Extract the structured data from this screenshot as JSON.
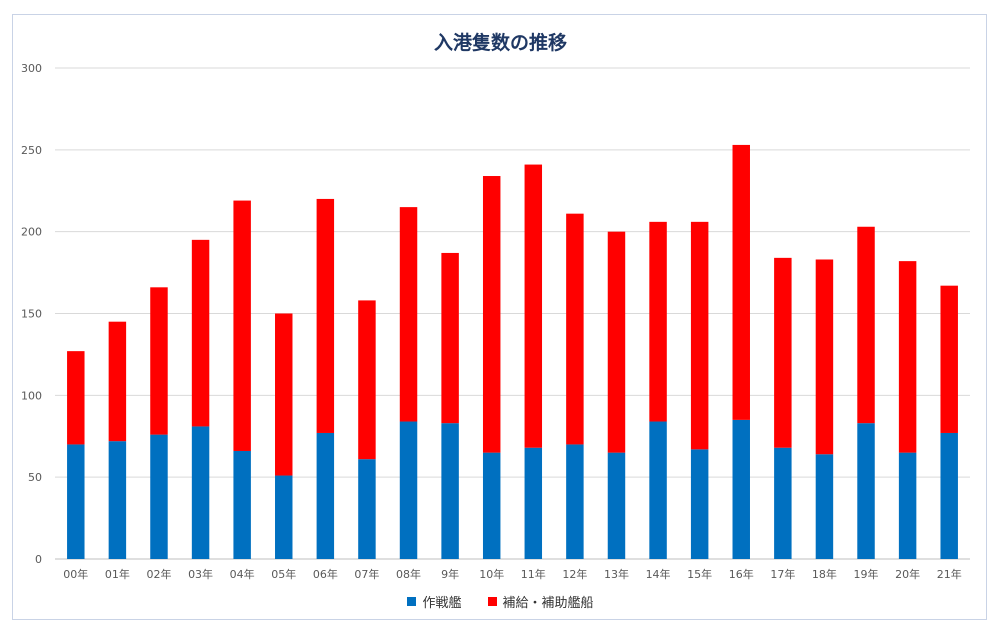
{
  "chart_data": {
    "type": "bar",
    "stacked": true,
    "title": "入港隻数の推移",
    "xlabel": "",
    "ylabel": "",
    "ylim": [
      0,
      300
    ],
    "yticks": [
      0,
      50,
      100,
      150,
      200,
      250,
      300
    ],
    "grid": true,
    "legend_position": "bottom",
    "categories": [
      "00年",
      "01年",
      "02年",
      "03年",
      "04年",
      "05年",
      "06年",
      "07年",
      "08年",
      "9年",
      "10年",
      "11年",
      "12年",
      "13年",
      "14年",
      "15年",
      "16年",
      "17年",
      "18年",
      "19年",
      "20年",
      "21年"
    ],
    "series": [
      {
        "name": "作戦艦",
        "color": "#0070c0",
        "values": [
          70,
          72,
          76,
          81,
          66,
          51,
          77,
          61,
          84,
          83,
          65,
          68,
          70,
          65,
          84,
          67,
          85,
          68,
          64,
          83,
          65,
          77
        ]
      },
      {
        "name": "補給・補助艦船",
        "color": "#ff0000",
        "values": [
          57,
          73,
          90,
          114,
          153,
          99,
          143,
          97,
          131,
          104,
          169,
          173,
          141,
          135,
          122,
          139,
          168,
          116,
          119,
          120,
          117,
          90
        ]
      }
    ]
  }
}
